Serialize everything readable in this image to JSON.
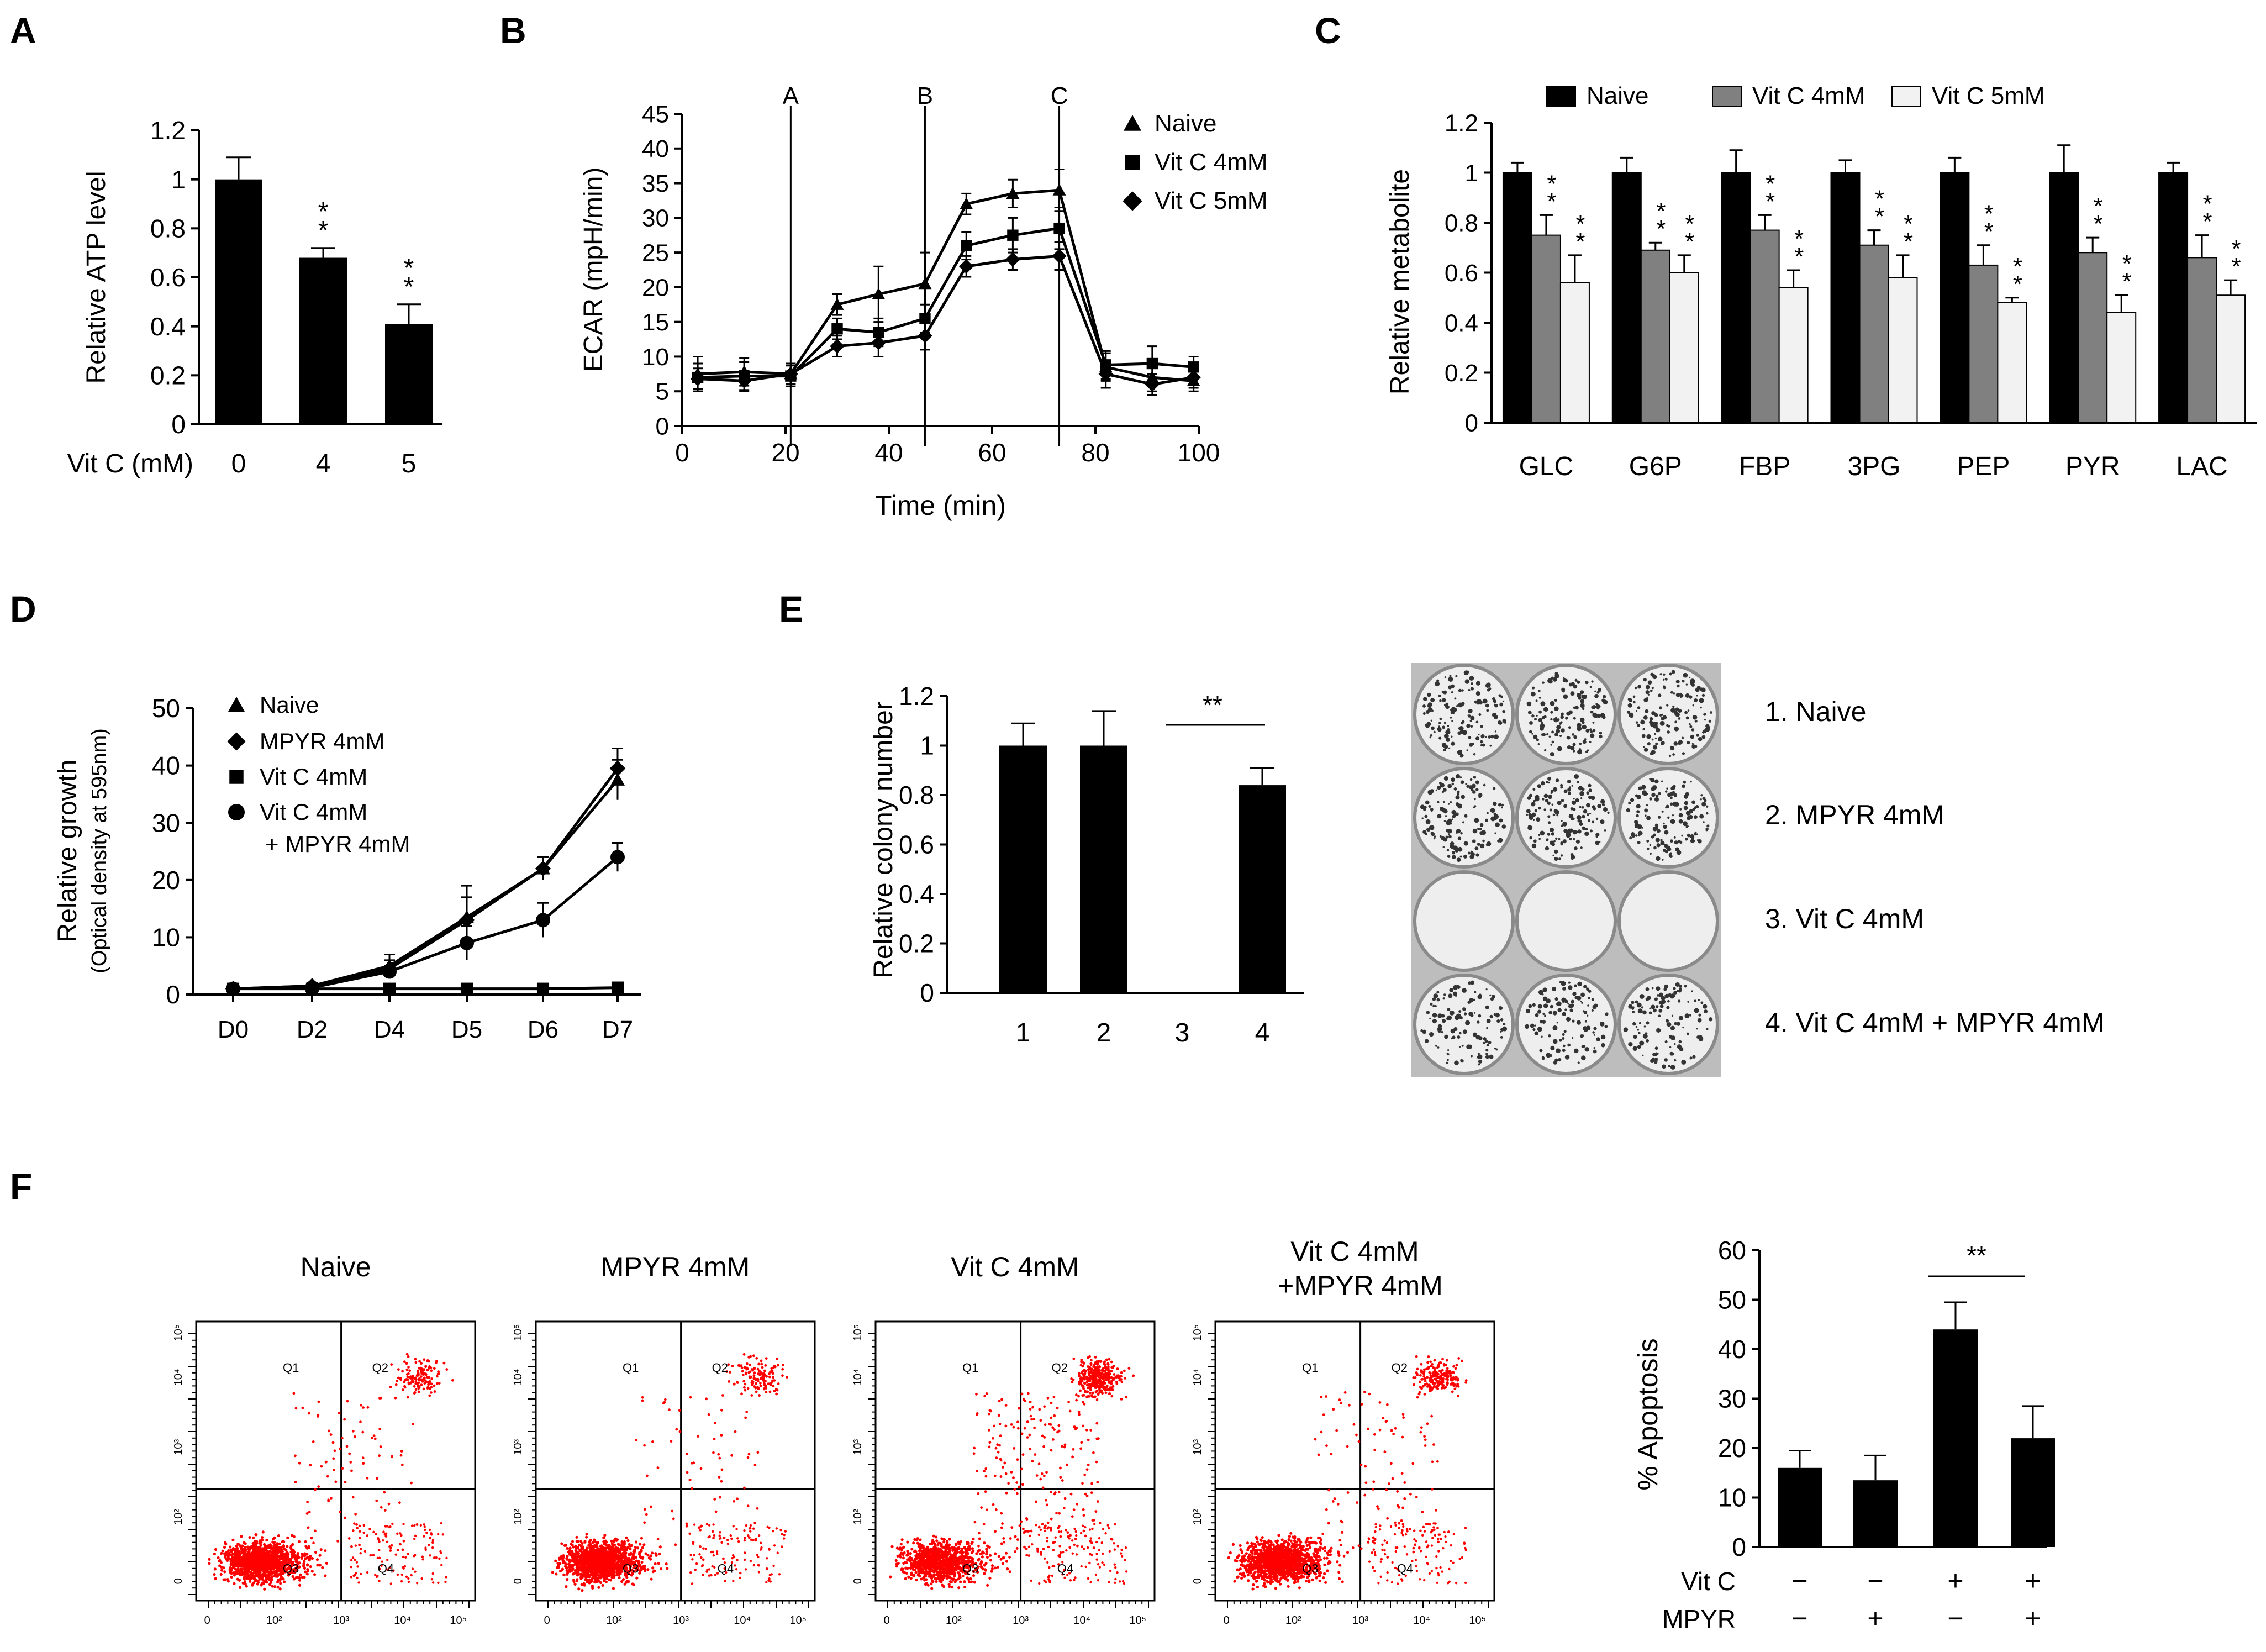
{
  "panel_labels": {
    "A": "A",
    "B": "B",
    "C": "C",
    "D": "D",
    "E": "E",
    "F": "F"
  },
  "chart_data": [
    {
      "id": "A",
      "type": "bar",
      "ylabel": "Relative ATP level",
      "xlabel": "Vit C (mM)",
      "categories": [
        "0",
        "4",
        "5"
      ],
      "values": [
        1.0,
        0.68,
        0.41
      ],
      "errors": [
        0.09,
        0.04,
        0.08
      ],
      "significance": [
        "",
        "* *",
        "* *"
      ],
      "ylim": [
        0,
        1.2
      ],
      "yticks": [
        0,
        0.2,
        0.4,
        0.6,
        0.8,
        1,
        1.2
      ],
      "ytick_labels": [
        "0",
        "0.2",
        "0.4",
        "0.6",
        "0.8",
        "1",
        "1.2"
      ],
      "colors": {
        "bar": "#000000"
      }
    },
    {
      "id": "B",
      "type": "line",
      "xlabel": "Time (min)",
      "ylabel": "ECAR (mpH/min)",
      "xlim": [
        0,
        100
      ],
      "ylim": [
        0,
        45
      ],
      "xticks": [
        0,
        20,
        40,
        60,
        80,
        100
      ],
      "yticks": [
        0,
        5,
        10,
        15,
        20,
        25,
        30,
        35,
        40,
        45
      ],
      "x": [
        3,
        12,
        21,
        30,
        38,
        47,
        55,
        64,
        73,
        82,
        91,
        99
      ],
      "series": [
        {
          "name": "Naive",
          "marker": "triangle",
          "values": [
            7.5,
            7.8,
            7.5,
            17.5,
            19,
            20.5,
            32,
            33.5,
            34,
            8.5,
            7,
            6.5
          ],
          "errors": [
            2.5,
            2,
            1.5,
            1.5,
            4,
            4.5,
            1.5,
            2,
            3,
            2,
            2,
            1.5
          ]
        },
        {
          "name": "Vit C 4mM",
          "marker": "square",
          "values": [
            7,
            7.2,
            7.2,
            14,
            13.5,
            15.5,
            26,
            27.5,
            28.5,
            8.8,
            9,
            8.5
          ],
          "errors": [
            2,
            2,
            1.5,
            1.5,
            2,
            2,
            2,
            2.5,
            3,
            2,
            2.5,
            1.5
          ]
        },
        {
          "name": "Vit C 5mM",
          "marker": "diamond",
          "values": [
            6.8,
            6.5,
            7.5,
            11.5,
            12,
            13,
            23,
            24,
            24.5,
            7.5,
            6,
            7
          ],
          "errors": [
            1.5,
            1.5,
            1.5,
            1.5,
            2,
            2,
            1.5,
            1.5,
            2,
            2,
            1.5,
            1.5
          ]
        }
      ],
      "injections": [
        {
          "label": "A",
          "x": 21
        },
        {
          "label": "B",
          "x": 47
        },
        {
          "label": "C",
          "x": 73
        }
      ]
    },
    {
      "id": "C",
      "type": "bar",
      "ylabel": "Relative metabolite",
      "categories": [
        "GLC",
        "G6P",
        "FBP",
        "3PG",
        "PEP",
        "PYR",
        "LAC"
      ],
      "series": [
        {
          "name": "Naive",
          "color": "#000000",
          "values": [
            1,
            1,
            1,
            1,
            1,
            1,
            1
          ],
          "errors": [
            0.04,
            0.06,
            0.09,
            0.05,
            0.06,
            0.11,
            0.04
          ]
        },
        {
          "name": "Vit C 4mM",
          "color": "#808080",
          "values": [
            0.75,
            0.69,
            0.77,
            0.71,
            0.63,
            0.68,
            0.66
          ],
          "errors": [
            0.08,
            0.03,
            0.06,
            0.06,
            0.08,
            0.06,
            0.09
          ]
        },
        {
          "name": "Vit C 5mM",
          "color": "#f2f2f2",
          "values": [
            0.56,
            0.6,
            0.54,
            0.58,
            0.48,
            0.44,
            0.51
          ],
          "errors": [
            0.11,
            0.07,
            0.07,
            0.09,
            0.02,
            0.07,
            0.06
          ]
        }
      ],
      "significance": [
        [
          "",
          "* *",
          "* *"
        ],
        [
          "",
          "* *",
          "* *"
        ],
        [
          "",
          "* *",
          "* *"
        ],
        [
          "",
          "* *",
          "* *"
        ],
        [
          "",
          "* *",
          "* *"
        ],
        [
          "",
          "* *",
          "* *"
        ],
        [
          "",
          "* *",
          "* *"
        ]
      ],
      "ylim": [
        0,
        1.2
      ],
      "yticks": [
        0,
        0.2,
        0.4,
        0.6,
        0.8,
        1,
        1.2
      ],
      "ytick_labels": [
        "0",
        "0.2",
        "0.4",
        "0.6",
        "0.8",
        "1",
        "1.2"
      ]
    },
    {
      "id": "D",
      "type": "line",
      "ylabel": "Relative growth",
      "ylabel2": "(Optical density at 595nm)",
      "categories": [
        "D0",
        "D2",
        "D4",
        "D5",
        "D6",
        "D7"
      ],
      "ylim": [
        0,
        50
      ],
      "yticks": [
        0,
        10,
        20,
        30,
        40,
        50
      ],
      "series": [
        {
          "name": "Naive",
          "legend": [
            "Naive"
          ],
          "marker": "triangle",
          "values": [
            1,
            1.5,
            5,
            13.5,
            22,
            37.5
          ],
          "errors": [
            0.5,
            0.5,
            2,
            5.5,
            2,
            3.5
          ]
        },
        {
          "name": "MPYR 4mM",
          "legend": [
            "MPYR 4mM"
          ],
          "marker": "diamond",
          "values": [
            1,
            1.5,
            4.5,
            13,
            22,
            39.5
          ],
          "errors": [
            0.5,
            0.5,
            1.5,
            4,
            2,
            3.5
          ]
        },
        {
          "name": "Vit C 4mM",
          "legend": [
            "Vit C 4mM"
          ],
          "marker": "square",
          "values": [
            1,
            1,
            1,
            1,
            1,
            1.2
          ],
          "errors": [
            0.5,
            0.3,
            0.3,
            0.3,
            0.3,
            0.3
          ]
        },
        {
          "name": "Vit C 4mM + MPYR 4mM",
          "legend": [
            "Vit C 4mM",
            "+ MPYR 4mM"
          ],
          "marker": "circle",
          "values": [
            1,
            1.2,
            4,
            9,
            13,
            24
          ],
          "errors": [
            0.5,
            0.3,
            1,
            3,
            3,
            2.5
          ]
        }
      ]
    },
    {
      "id": "E",
      "type": "bar",
      "ylabel": "Relative colony number",
      "categories": [
        "1",
        "2",
        "3",
        "4"
      ],
      "values": [
        1.0,
        1.0,
        0.0,
        0.84
      ],
      "errors": [
        0.09,
        0.14,
        0.0,
        0.07
      ],
      "ylim": [
        0,
        1.2
      ],
      "yticks": [
        0,
        0.2,
        0.4,
        0.6,
        0.8,
        1,
        1.2
      ],
      "ytick_labels": [
        "0",
        "0.2",
        "0.4",
        "0.6",
        "0.8",
        "1",
        "1.2"
      ],
      "significance": {
        "text": "**",
        "from": "3",
        "to": "4"
      },
      "plate_rows": [
        "1. Naive",
        "2. MPYR 4mM",
        "3. Vit C 4mM",
        "4. Vit C 4mM + MPYR 4mM"
      ],
      "plate_colony_density": [
        1.0,
        1.0,
        0.0,
        0.8
      ]
    },
    {
      "id": "F",
      "type": "scatter",
      "plots": [
        {
          "title": [
            "Naive"
          ],
          "q2_density": 0.35,
          "q3_density": 1.0
        },
        {
          "title": [
            "MPYR 4mM"
          ],
          "q2_density": 0.3,
          "q3_density": 1.0
        },
        {
          "title": [
            "Vit C 4mM"
          ],
          "q2_density": 0.85,
          "q3_density": 0.8
        },
        {
          "title": [
            "Vit C 4mM",
            "+MPYR 4mM"
          ],
          "q2_density": 0.45,
          "q3_density": 1.0
        }
      ],
      "quadrants": [
        "Q1",
        "Q2",
        "Q3",
        "Q4"
      ],
      "x_tick_labels": [
        "0",
        "10²",
        "10³",
        "10⁴",
        "10⁵"
      ],
      "y_tick_labels": [
        "0",
        "10²",
        "10³",
        "10⁴",
        "10⁵"
      ],
      "point_color": "#ff0000"
    },
    {
      "id": "F-bar",
      "type": "bar",
      "ylabel": "% Apoptosis",
      "values": [
        16,
        13.5,
        44,
        22
      ],
      "errors": [
        3.5,
        5,
        5.5,
        6.5
      ],
      "ylim": [
        0,
        60
      ],
      "yticks": [
        0,
        10,
        20,
        30,
        40,
        50,
        60
      ],
      "row_labels": [
        "Vit C",
        "MPYR"
      ],
      "row_values": [
        [
          "−",
          "−",
          "+",
          "+"
        ],
        [
          "−",
          "+",
          "−",
          "+"
        ]
      ],
      "significance": {
        "text": "**",
        "from": 3,
        "to": 4
      }
    }
  ]
}
